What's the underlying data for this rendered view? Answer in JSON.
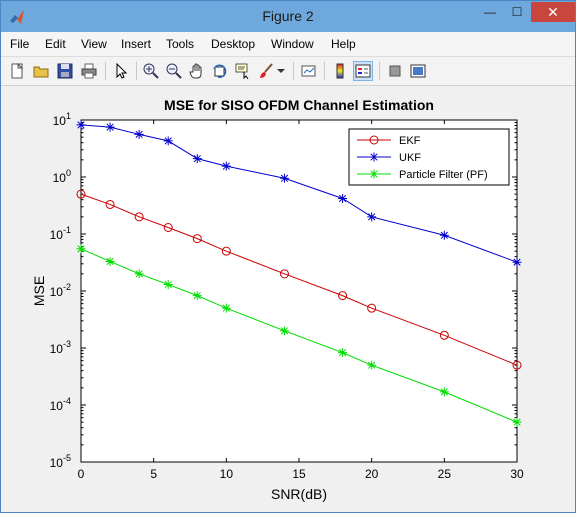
{
  "window": {
    "title": "Figure 2"
  },
  "window_buttons": {
    "minimize": "—",
    "maximize": "☐",
    "close": "✕"
  },
  "menu": [
    "File",
    "Edit",
    "View",
    "Insert",
    "Tools",
    "Desktop",
    "Window",
    "Help"
  ],
  "dock_arrow": "↘",
  "toolbar_icons": [
    "new-figure-icon",
    "open-file-icon",
    "save-icon",
    "print-icon",
    "edit-plot-icon",
    "zoom-in-icon",
    "zoom-out-icon",
    "pan-icon",
    "rotate-3d-icon",
    "data-cursor-icon",
    "brush-icon",
    "brush-dropdown-icon",
    "link-plot-icon",
    "insert-colorbar-icon",
    "insert-legend-icon",
    "hide-plot-tools-icon",
    "show-plot-tools-icon"
  ],
  "chart_data": {
    "type": "line",
    "title": "MSE for SISO OFDM Channel Estimation",
    "xlabel": "SNR(dB)",
    "ylabel": "MSE",
    "xlim": [
      0,
      30
    ],
    "ylim": [
      1e-05,
      10
    ],
    "yscale": "log",
    "x_ticks": [
      "0",
      "5",
      "10",
      "15",
      "20",
      "25",
      "30"
    ],
    "y_ticks": [
      {
        "base": "10",
        "exp": "1",
        "value": 10
      },
      {
        "base": "10",
        "exp": "0",
        "value": 1
      },
      {
        "base": "10",
        "exp": "-1",
        "value": 0.1
      },
      {
        "base": "10",
        "exp": "-2",
        "value": 0.01
      },
      {
        "base": "10",
        "exp": "-3",
        "value": 0.001
      },
      {
        "base": "10",
        "exp": "-4",
        "value": 0.0001
      },
      {
        "base": "10",
        "exp": "-5",
        "value": 1e-05
      }
    ],
    "grid": false,
    "legend_position": "top-right",
    "series": [
      {
        "name": "EKF",
        "color": "#cc0000",
        "marker": "circle",
        "x": [
          0,
          2,
          4,
          6,
          8,
          10,
          14,
          18,
          20,
          25,
          30
        ],
        "y": [
          0.5,
          0.33,
          0.2,
          0.13,
          0.083,
          0.05,
          0.02,
          0.0083,
          0.005,
          0.00167,
          0.0005
        ]
      },
      {
        "name": "UKF",
        "color": "#0000cc",
        "marker": "star",
        "x": [
          0,
          2,
          4,
          6,
          8,
          10,
          14,
          18,
          20,
          25,
          30
        ],
        "y": [
          8.2,
          7.5,
          5.6,
          4.3,
          2.1,
          1.55,
          0.95,
          0.42,
          0.2,
          0.095,
          0.032
        ]
      },
      {
        "name": "Particle Filter (PF)",
        "color": "#00dd00",
        "marker": "star",
        "x": [
          0,
          2,
          4,
          6,
          8,
          10,
          14,
          18,
          20,
          25,
          30
        ],
        "y": [
          0.055,
          0.033,
          0.02,
          0.013,
          0.0083,
          0.005,
          0.002,
          0.00083,
          0.0005,
          0.00017,
          5e-05
        ]
      }
    ]
  }
}
